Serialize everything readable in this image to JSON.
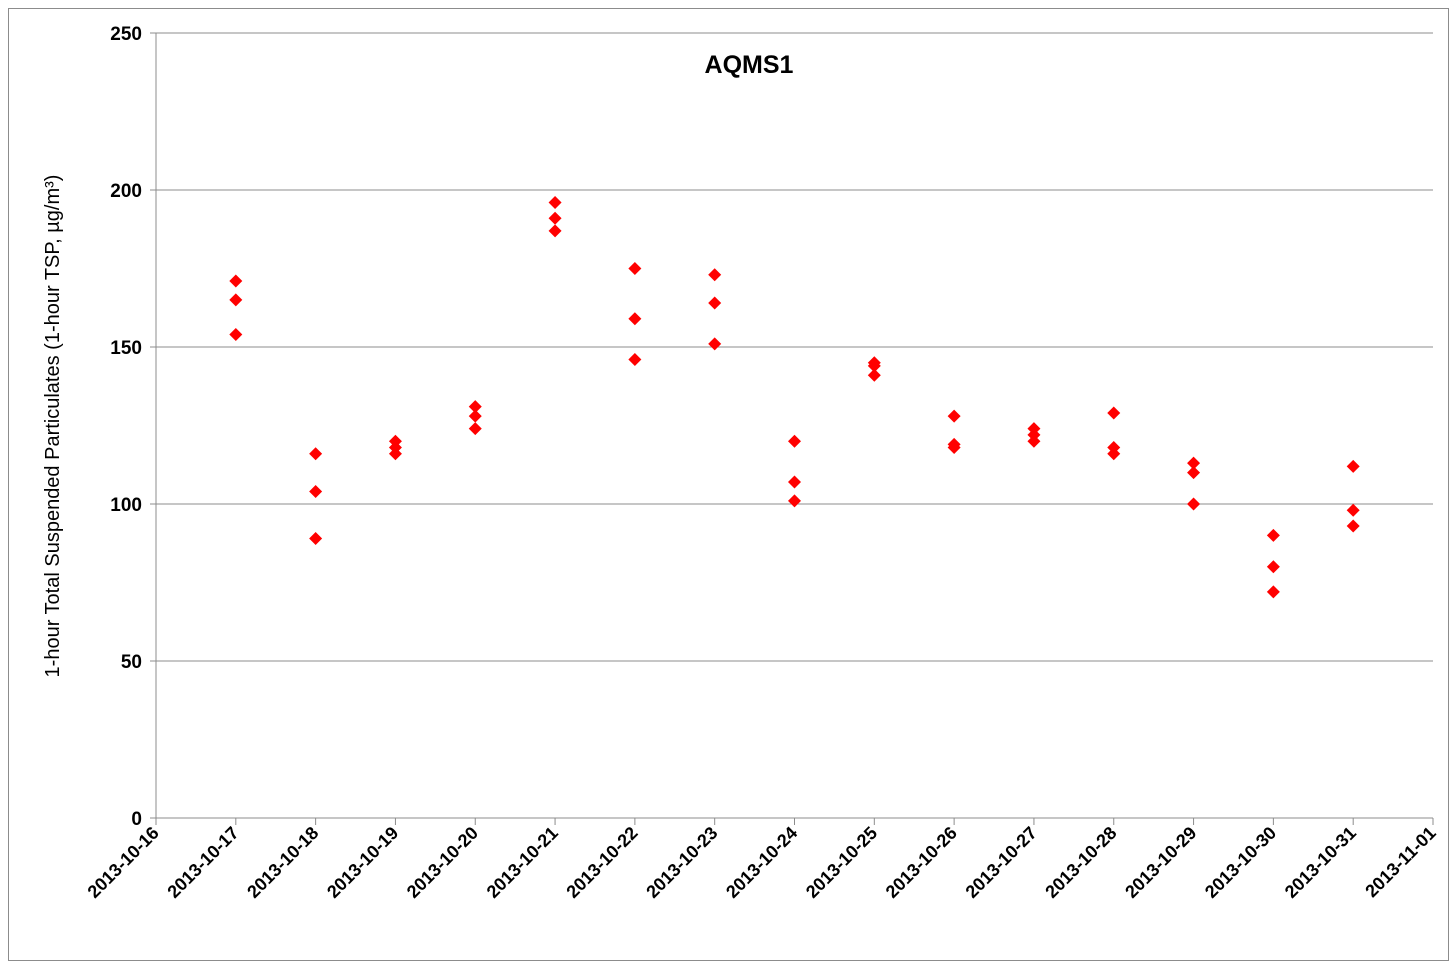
{
  "chart_data": {
    "type": "scatter",
    "title": "AQMS1",
    "ylabel": "1-hour Total Suspended Particulates (1-hour TSP, µg/m³)",
    "xlabel": "",
    "ylim": [
      0,
      250
    ],
    "yticks": [
      0,
      50,
      100,
      150,
      200,
      250
    ],
    "xlim": [
      "2013-10-16",
      "2013-11-01"
    ],
    "xticks": [
      "2013-10-16",
      "2013-10-17",
      "2013-10-18",
      "2013-10-19",
      "2013-10-20",
      "2013-10-21",
      "2013-10-22",
      "2013-10-23",
      "2013-10-24",
      "2013-10-25",
      "2013-10-26",
      "2013-10-27",
      "2013-10-28",
      "2013-10-29",
      "2013-10-30",
      "2013-10-31",
      "2013-11-01"
    ],
    "grid": "horizontal",
    "marker": "diamond",
    "marker_color": "#ff0000",
    "series": [
      {
        "points": [
          {
            "x": "2013-10-17",
            "y": 171
          },
          {
            "x": "2013-10-17",
            "y": 165
          },
          {
            "x": "2013-10-17",
            "y": 154
          },
          {
            "x": "2013-10-18",
            "y": 116
          },
          {
            "x": "2013-10-18",
            "y": 104
          },
          {
            "x": "2013-10-18",
            "y": 89
          },
          {
            "x": "2013-10-19",
            "y": 120
          },
          {
            "x": "2013-10-19",
            "y": 118
          },
          {
            "x": "2013-10-19",
            "y": 116
          },
          {
            "x": "2013-10-20",
            "y": 131
          },
          {
            "x": "2013-10-20",
            "y": 128
          },
          {
            "x": "2013-10-20",
            "y": 124
          },
          {
            "x": "2013-10-21",
            "y": 196
          },
          {
            "x": "2013-10-21",
            "y": 191
          },
          {
            "x": "2013-10-21",
            "y": 187
          },
          {
            "x": "2013-10-22",
            "y": 175
          },
          {
            "x": "2013-10-22",
            "y": 159
          },
          {
            "x": "2013-10-22",
            "y": 146
          },
          {
            "x": "2013-10-23",
            "y": 173
          },
          {
            "x": "2013-10-23",
            "y": 164
          },
          {
            "x": "2013-10-23",
            "y": 151
          },
          {
            "x": "2013-10-24",
            "y": 120
          },
          {
            "x": "2013-10-24",
            "y": 107
          },
          {
            "x": "2013-10-24",
            "y": 101
          },
          {
            "x": "2013-10-25",
            "y": 145
          },
          {
            "x": "2013-10-25",
            "y": 144
          },
          {
            "x": "2013-10-25",
            "y": 141
          },
          {
            "x": "2013-10-26",
            "y": 128
          },
          {
            "x": "2013-10-26",
            "y": 119
          },
          {
            "x": "2013-10-26",
            "y": 118
          },
          {
            "x": "2013-10-27",
            "y": 124
          },
          {
            "x": "2013-10-27",
            "y": 122
          },
          {
            "x": "2013-10-27",
            "y": 120
          },
          {
            "x": "2013-10-28",
            "y": 129
          },
          {
            "x": "2013-10-28",
            "y": 118
          },
          {
            "x": "2013-10-28",
            "y": 116
          },
          {
            "x": "2013-10-29",
            "y": 113
          },
          {
            "x": "2013-10-29",
            "y": 110
          },
          {
            "x": "2013-10-29",
            "y": 100
          },
          {
            "x": "2013-10-30",
            "y": 90
          },
          {
            "x": "2013-10-30",
            "y": 80
          },
          {
            "x": "2013-10-30",
            "y": 72
          },
          {
            "x": "2013-10-31",
            "y": 112
          },
          {
            "x": "2013-10-31",
            "y": 98
          },
          {
            "x": "2013-10-31",
            "y": 93
          }
        ]
      }
    ]
  }
}
